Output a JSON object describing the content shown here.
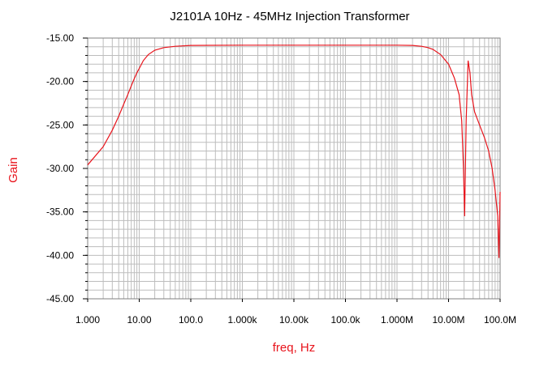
{
  "chart_data": {
    "type": "line",
    "title": "J2101A 10Hz - 45MHz Injection Transformer",
    "xlabel": "freq, Hz",
    "ylabel": "Gain",
    "x_scale": "log",
    "xlim": [
      1,
      100000000
    ],
    "ylim": [
      -45,
      -15
    ],
    "grid": true,
    "x_ticks": [
      {
        "value": 1,
        "label": "1.000"
      },
      {
        "value": 10,
        "label": "10.00"
      },
      {
        "value": 100,
        "label": "100.0"
      },
      {
        "value": 1000,
        "label": "1.000k"
      },
      {
        "value": 10000,
        "label": "10.00k"
      },
      {
        "value": 100000,
        "label": "100.0k"
      },
      {
        "value": 1000000,
        "label": "1.000M"
      },
      {
        "value": 10000000,
        "label": "10.00M"
      },
      {
        "value": 100000000,
        "label": "100.0M"
      }
    ],
    "y_ticks": [
      {
        "value": -15,
        "label": "-15.00"
      },
      {
        "value": -20,
        "label": "-20.00"
      },
      {
        "value": -25,
        "label": "-25.00"
      },
      {
        "value": -30,
        "label": "-30.00"
      },
      {
        "value": -35,
        "label": "-35.00"
      },
      {
        "value": -40,
        "label": "-40.00"
      },
      {
        "value": -45,
        "label": "-45.00"
      }
    ],
    "colors": {
      "line": "#e8141c",
      "label": "#e8141c",
      "grid": "#bdbdbd",
      "axis": "#808080"
    },
    "series": [
      {
        "x": [
          1,
          2,
          3,
          4,
          5,
          6,
          7,
          8,
          9,
          10,
          12,
          15,
          20,
          30,
          50,
          100,
          1000,
          10000,
          100000,
          1000000,
          2000000,
          3000000,
          4000000,
          5000000,
          7000000,
          10000000,
          13000000,
          16000000,
          18000000,
          19500000,
          20500000,
          22000000,
          24000000,
          26000000,
          28000000,
          32000000,
          40000000,
          50000000,
          60000000,
          70000000,
          80000000,
          90000000,
          95000000,
          100000000
        ],
        "y": [
          -29.6,
          -27.5,
          -25.6,
          -24.0,
          -22.6,
          -21.5,
          -20.5,
          -19.7,
          -19.0,
          -18.5,
          -17.6,
          -16.9,
          -16.4,
          -16.1,
          -15.95,
          -15.85,
          -15.82,
          -15.82,
          -15.82,
          -15.82,
          -15.85,
          -15.95,
          -16.1,
          -16.3,
          -16.9,
          -18.0,
          -19.6,
          -21.5,
          -24.5,
          -30.0,
          -35.5,
          -24.5,
          -17.6,
          -19.0,
          -21.5,
          -23.5,
          -25.0,
          -26.5,
          -28.0,
          -30.0,
          -32.5,
          -35.5,
          -40.3,
          -32.7
        ]
      }
    ]
  }
}
